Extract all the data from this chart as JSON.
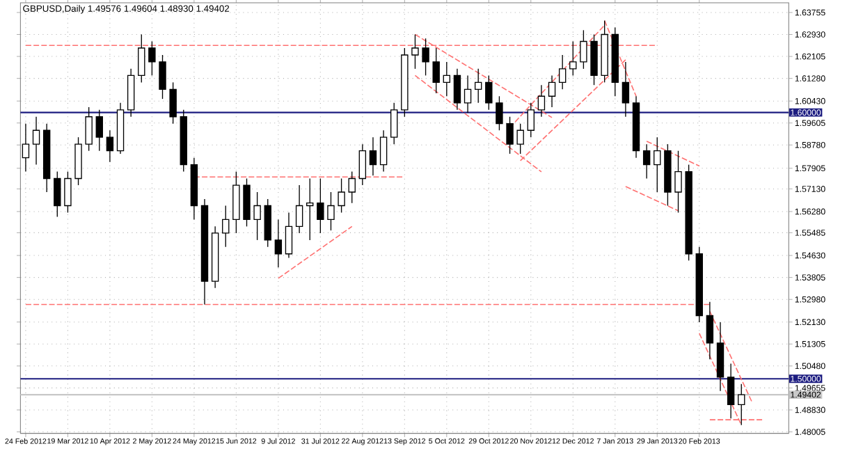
{
  "chart_data": {
    "type": "candlestick",
    "title": "GBPUSD,Daily  1.49576 1.49604 1.48930 1.49402",
    "color": "#000000",
    "grid": true,
    "categories": [
      "24 Feb 2012",
      null,
      null,
      null,
      "19 Mar 2012",
      null,
      null,
      null,
      "10 Apr 2012",
      null,
      null,
      null,
      "2 May 2012",
      null,
      null,
      null,
      "24 May 2012",
      null,
      null,
      null,
      "15 Jun 2012",
      null,
      null,
      null,
      "9 Jul 2012",
      null,
      null,
      null,
      "31 Jul 2012",
      null,
      null,
      null,
      "22 Aug 2012",
      null,
      null,
      null,
      "13 Sep 2012",
      null,
      null,
      null,
      "5 Oct 2012",
      null,
      null,
      null,
      "29 Oct 2012",
      null,
      null,
      null,
      "20 Nov 2012",
      null,
      null,
      null,
      "12 Dec 2012",
      null,
      null,
      null,
      "7 Jan 2013",
      null,
      null,
      null,
      "29 Jan 2013",
      null,
      null,
      null,
      "20 Feb 2013",
      null,
      null,
      null,
      null,
      null,
      null,
      null,
      null
    ],
    "ohlc": [
      [
        1.583,
        1.5958,
        1.5778,
        1.5881
      ],
      [
        1.5881,
        1.5984,
        1.5804,
        1.5933
      ],
      [
        1.5933,
        1.5958,
        1.5701,
        1.5752
      ],
      [
        1.5752,
        1.5778,
        1.5608,
        1.565
      ],
      [
        1.565,
        1.5778,
        1.5624,
        1.5752
      ],
      [
        1.5752,
        1.5907,
        1.5727,
        1.5881
      ],
      [
        1.5881,
        1.602,
        1.5856,
        1.5984
      ],
      [
        1.5984,
        1.601,
        1.5856,
        1.5907
      ],
      [
        1.5907,
        1.5933,
        1.5814,
        1.5856
      ],
      [
        1.5856,
        1.6036,
        1.5845,
        1.601
      ],
      [
        1.601,
        1.6164,
        1.5984,
        1.6139
      ],
      [
        1.6139,
        1.6293,
        1.6113,
        1.6242
      ],
      [
        1.6242,
        1.6267,
        1.6139,
        1.619
      ],
      [
        1.619,
        1.6216,
        1.6051,
        1.6087
      ],
      [
        1.6087,
        1.6113,
        1.5958,
        1.5984
      ],
      [
        1.5984,
        1.601,
        1.5778,
        1.5804
      ],
      [
        1.5804,
        1.583,
        1.5598,
        1.565
      ],
      [
        1.565,
        1.5675,
        1.5279,
        1.5366
      ],
      [
        1.5366,
        1.5572,
        1.5341,
        1.5547
      ],
      [
        1.5547,
        1.565,
        1.5495,
        1.5598
      ],
      [
        1.5598,
        1.5778,
        1.5547,
        1.5727
      ],
      [
        1.5727,
        1.5752,
        1.5572,
        1.5598
      ],
      [
        1.5598,
        1.5701,
        1.5521,
        1.565
      ],
      [
        1.565,
        1.5675,
        1.5495,
        1.5521
      ],
      [
        1.5521,
        1.5598,
        1.5418,
        1.5469
      ],
      [
        1.5469,
        1.5624,
        1.5454,
        1.5572
      ],
      [
        1.5572,
        1.5727,
        1.5547,
        1.565
      ],
      [
        1.565,
        1.5752,
        1.5521,
        1.566
      ],
      [
        1.566,
        1.5752,
        1.5547,
        1.5598
      ],
      [
        1.5598,
        1.5701,
        1.5557,
        1.565
      ],
      [
        1.565,
        1.5752,
        1.5624,
        1.5701
      ],
      [
        1.5701,
        1.5778,
        1.566,
        1.5752
      ],
      [
        1.5752,
        1.5881,
        1.5727,
        1.5856
      ],
      [
        1.5856,
        1.5907,
        1.5763,
        1.5804
      ],
      [
        1.5804,
        1.5933,
        1.5778,
        1.5907
      ],
      [
        1.5907,
        1.6036,
        1.5881,
        1.601
      ],
      [
        1.601,
        1.6242,
        1.5984,
        1.6216
      ],
      [
        1.6216,
        1.6293,
        1.6164,
        1.6242
      ],
      [
        1.6242,
        1.6278,
        1.6139,
        1.619
      ],
      [
        1.619,
        1.6242,
        1.6072,
        1.6113
      ],
      [
        1.6113,
        1.619,
        1.6061,
        1.6139
      ],
      [
        1.6139,
        1.6164,
        1.601,
        1.6036
      ],
      [
        1.6036,
        1.6139,
        1.5999,
        1.6087
      ],
      [
        1.6087,
        1.6164,
        1.6036,
        1.6113
      ],
      [
        1.6113,
        1.6139,
        1.601,
        1.6036
      ],
      [
        1.6036,
        1.6061,
        1.5933,
        1.5958
      ],
      [
        1.5958,
        1.5984,
        1.5845,
        1.5881
      ],
      [
        1.5881,
        1.5958,
        1.5845,
        1.5933
      ],
      [
        1.5933,
        1.6036,
        1.5907,
        1.601
      ],
      [
        1.601,
        1.6103,
        1.5984,
        1.6061
      ],
      [
        1.6061,
        1.6139,
        1.602,
        1.6113
      ],
      [
        1.6113,
        1.6216,
        1.6087,
        1.6164
      ],
      [
        1.6164,
        1.6267,
        1.6139,
        1.619
      ],
      [
        1.619,
        1.6309,
        1.6164,
        1.6267
      ],
      [
        1.6267,
        1.6293,
        1.6103,
        1.6139
      ],
      [
        1.6139,
        1.6345,
        1.6113,
        1.6293
      ],
      [
        1.6293,
        1.6319,
        1.6061,
        1.6113
      ],
      [
        1.6113,
        1.619,
        1.5984,
        1.6036
      ],
      [
        1.6036,
        1.6061,
        1.583,
        1.5856
      ],
      [
        1.5856,
        1.5881,
        1.5752,
        1.5804
      ],
      [
        1.5804,
        1.5907,
        1.5701,
        1.5856
      ],
      [
        1.5856,
        1.5881,
        1.565,
        1.5701
      ],
      [
        1.5701,
        1.5856,
        1.5624,
        1.5778
      ],
      [
        1.5778,
        1.5804,
        1.5444,
        1.5469
      ],
      [
        1.5469,
        1.5495,
        1.5212,
        1.5237
      ],
      [
        1.5237,
        1.5289,
        1.5073,
        1.5134
      ],
      [
        1.5134,
        1.5212,
        1.4954,
        1.5006
      ],
      [
        1.5006,
        1.5057,
        1.4851,
        1.4903
      ],
      [
        1.4903,
        1.498,
        1.4826,
        1.494
      ],
      null,
      null,
      null,
      null
    ],
    "ylim": [
      1.4795,
      1.6412
    ],
    "yticks": [
      {
        "value": 1.63755,
        "label": "1.63755"
      },
      {
        "value": 1.6293,
        "label": "1.62930"
      },
      {
        "value": 1.62105,
        "label": "1.62105"
      },
      {
        "value": 1.6128,
        "label": "1.61280"
      },
      {
        "value": 1.6043,
        "label": "1.60430"
      },
      {
        "value": 1.59605,
        "label": "1.59605"
      },
      {
        "value": 1.5878,
        "label": "1.58780"
      },
      {
        "value": 1.57905,
        "label": "1.57905"
      },
      {
        "value": 1.5713,
        "label": "1.57130"
      },
      {
        "value": 1.5628,
        "label": "1.56280"
      },
      {
        "value": 1.55485,
        "label": "1.55485"
      },
      {
        "value": 1.5463,
        "label": "1.54630"
      },
      {
        "value": 1.53805,
        "label": "1.53805"
      },
      {
        "value": 1.5298,
        "label": "1.52980"
      },
      {
        "value": 1.5213,
        "label": "1.52130"
      },
      {
        "value": 1.51305,
        "label": "1.51305"
      },
      {
        "value": 1.5048,
        "label": "1.50480"
      },
      {
        "value": 1.49655,
        "label": "1.49655"
      },
      {
        "value": 1.4883,
        "label": "1.48830"
      },
      {
        "value": 1.48005,
        "label": "1.48005"
      }
    ],
    "ref_lines": [
      {
        "axis": "y",
        "value": 1.6,
        "label": "1.60000",
        "color": "#1c1c80"
      },
      {
        "axis": "y",
        "value": 1.5,
        "label": "1.50000",
        "color": "#1c1c80"
      },
      {
        "axis": "y",
        "value": 1.49402,
        "label": "1.49402",
        "color": "#c8c8c8"
      }
    ],
    "series": [
      {
        "type": "line",
        "color": "#ff7070",
        "line_style": "dashed",
        "values": [
          1.6252,
          null,
          null,
          null,
          null,
          null,
          null,
          null,
          null,
          null,
          null,
          null,
          null,
          null,
          null,
          null,
          null,
          null,
          null,
          null,
          null,
          null,
          null,
          null,
          null,
          null,
          null,
          null,
          null,
          null,
          null,
          null,
          null,
          null,
          null,
          null,
          null,
          null,
          null,
          null,
          null,
          null,
          null,
          null,
          null,
          null,
          null,
          null,
          null,
          null,
          null,
          null,
          null,
          null,
          null,
          null,
          null,
          null,
          null,
          null,
          1.6252,
          null,
          null,
          null,
          null,
          null,
          null,
          null,
          null,
          null,
          null,
          null,
          null
        ]
      },
      {
        "type": "line",
        "color": "#ff7070",
        "line_style": "dashed",
        "values": [
          null,
          null,
          null,
          null,
          null,
          null,
          null,
          null,
          null,
          null,
          null,
          null,
          null,
          null,
          null,
          null,
          1.5758,
          null,
          null,
          null,
          null,
          null,
          null,
          null,
          null,
          null,
          null,
          null,
          null,
          null,
          null,
          null,
          null,
          null,
          null,
          null,
          1.5758,
          null,
          null,
          null,
          null,
          null,
          null,
          null,
          null,
          null,
          null,
          null,
          null,
          null,
          null,
          null,
          null,
          null,
          null,
          null,
          null,
          null,
          null,
          null,
          null,
          null,
          null,
          null,
          null,
          null,
          null,
          null,
          null,
          null,
          null,
          null,
          null
        ]
      },
      {
        "type": "line",
        "color": "#ff7070",
        "line_style": "dashed",
        "values": [
          1.5279,
          null,
          null,
          null,
          null,
          null,
          null,
          null,
          null,
          null,
          null,
          null,
          null,
          null,
          null,
          null,
          null,
          null,
          null,
          null,
          null,
          null,
          null,
          null,
          null,
          null,
          null,
          null,
          null,
          null,
          null,
          null,
          null,
          null,
          null,
          null,
          null,
          null,
          null,
          null,
          null,
          null,
          null,
          null,
          null,
          null,
          null,
          null,
          null,
          null,
          null,
          null,
          null,
          null,
          null,
          null,
          null,
          null,
          null,
          null,
          null,
          null,
          null,
          null,
          null,
          1.5279,
          null,
          null,
          null,
          null,
          null,
          null,
          null
        ]
      },
      {
        "type": "line",
        "color": "#ff7070",
        "line_style": "dashed",
        "values": [
          null,
          null,
          null,
          null,
          null,
          null,
          null,
          null,
          null,
          null,
          null,
          null,
          null,
          null,
          null,
          null,
          null,
          null,
          null,
          null,
          null,
          null,
          null,
          null,
          null,
          null,
          null,
          null,
          null,
          null,
          null,
          null,
          null,
          null,
          null,
          null,
          null,
          null,
          null,
          null,
          null,
          null,
          null,
          null,
          null,
          null,
          null,
          null,
          null,
          null,
          null,
          null,
          null,
          null,
          null,
          null,
          null,
          null,
          null,
          null,
          null,
          null,
          null,
          null,
          null,
          1.4846,
          null,
          null,
          null,
          null,
          1.4846,
          null,
          null
        ]
      },
      {
        "type": "line",
        "color": "#ff7070",
        "line_style": "dashed",
        "values": [
          null,
          null,
          null,
          null,
          null,
          null,
          null,
          null,
          null,
          null,
          null,
          null,
          null,
          null,
          null,
          null,
          null,
          null,
          null,
          null,
          null,
          null,
          null,
          null,
          1.5377,
          null,
          null,
          null,
          null,
          null,
          null,
          1.5572,
          null,
          null,
          null,
          null,
          null,
          null,
          null,
          null,
          null,
          null,
          null,
          null,
          null,
          null,
          null,
          null,
          null,
          null,
          null,
          null,
          null,
          null,
          null,
          null,
          null,
          null,
          null,
          null,
          null,
          null,
          null,
          null,
          null,
          null,
          null,
          null,
          null,
          null,
          null,
          null,
          null
        ]
      },
      {
        "type": "line",
        "color": "#ff7070",
        "line_style": "dashed",
        "values": [
          null,
          null,
          null,
          null,
          null,
          null,
          null,
          null,
          null,
          null,
          null,
          null,
          null,
          null,
          null,
          null,
          null,
          null,
          null,
          null,
          null,
          null,
          null,
          null,
          null,
          null,
          null,
          null,
          null,
          null,
          null,
          null,
          null,
          null,
          null,
          null,
          null,
          1.6293,
          null,
          null,
          null,
          null,
          null,
          null,
          null,
          null,
          null,
          null,
          null,
          null,
          1.5981,
          null,
          null,
          null,
          null,
          null,
          null,
          null,
          null,
          null,
          null,
          null,
          null,
          null,
          null,
          null,
          null,
          null,
          null,
          null,
          null,
          null,
          null
        ]
      },
      {
        "type": "line",
        "color": "#ff7070",
        "line_style": "dashed",
        "values": [
          null,
          null,
          null,
          null,
          null,
          null,
          null,
          null,
          null,
          null,
          null,
          null,
          null,
          null,
          null,
          null,
          null,
          null,
          null,
          null,
          null,
          null,
          null,
          null,
          null,
          null,
          null,
          null,
          null,
          null,
          null,
          null,
          null,
          null,
          null,
          null,
          null,
          1.6139,
          null,
          null,
          null,
          null,
          null,
          null,
          null,
          null,
          null,
          null,
          null,
          1.5777,
          null,
          null,
          null,
          null,
          null,
          null,
          null,
          null,
          null,
          null,
          null,
          null,
          null,
          null,
          null,
          null,
          null,
          null,
          null,
          null,
          null,
          null,
          null
        ]
      },
      {
        "type": "line",
        "color": "#ff7070",
        "line_style": "dashed",
        "values": [
          null,
          null,
          null,
          null,
          null,
          null,
          null,
          null,
          null,
          null,
          null,
          null,
          null,
          null,
          null,
          null,
          null,
          null,
          null,
          null,
          null,
          null,
          null,
          null,
          null,
          null,
          null,
          null,
          null,
          null,
          null,
          null,
          null,
          null,
          null,
          null,
          null,
          null,
          null,
          null,
          null,
          null,
          null,
          null,
          null,
          null,
          null,
          1.5819,
          null,
          null,
          null,
          null,
          null,
          null,
          null,
          null,
          null,
          1.6198,
          null,
          null,
          null,
          null,
          null,
          null,
          null,
          null,
          null,
          null,
          null,
          null,
          null,
          null,
          null
        ]
      },
      {
        "type": "line",
        "color": "#ff7070",
        "line_style": "dashed",
        "values": [
          null,
          null,
          null,
          null,
          null,
          null,
          null,
          null,
          null,
          null,
          null,
          null,
          null,
          null,
          null,
          null,
          null,
          null,
          null,
          null,
          null,
          null,
          null,
          null,
          null,
          null,
          null,
          null,
          null,
          null,
          null,
          null,
          null,
          null,
          null,
          null,
          null,
          null,
          null,
          null,
          null,
          null,
          null,
          null,
          null,
          null,
          1.5943,
          null,
          null,
          null,
          null,
          null,
          null,
          null,
          null,
          1.6328,
          null,
          null,
          null,
          null,
          null,
          null,
          null,
          null,
          null,
          null,
          null,
          null,
          null,
          null,
          null,
          null,
          null
        ]
      },
      {
        "type": "line",
        "color": "#ff7070",
        "line_style": "dashed",
        "values": [
          null,
          null,
          null,
          null,
          null,
          null,
          null,
          null,
          null,
          null,
          null,
          null,
          null,
          null,
          null,
          null,
          null,
          null,
          null,
          null,
          null,
          null,
          null,
          null,
          null,
          null,
          null,
          null,
          null,
          null,
          null,
          null,
          null,
          null,
          null,
          null,
          null,
          null,
          null,
          null,
          null,
          null,
          null,
          null,
          null,
          null,
          null,
          null,
          null,
          null,
          null,
          null,
          null,
          null,
          null,
          1.6345,
          null,
          null,
          1.6061,
          null,
          null,
          null,
          null,
          null,
          null,
          null,
          null,
          null,
          null,
          null,
          null,
          null,
          null
        ]
      },
      {
        "type": "line",
        "color": "#ff7070",
        "line_style": "dashed",
        "values": [
          null,
          null,
          null,
          null,
          null,
          null,
          null,
          null,
          null,
          null,
          null,
          null,
          null,
          null,
          null,
          null,
          null,
          null,
          null,
          null,
          null,
          null,
          null,
          null,
          null,
          null,
          null,
          null,
          null,
          null,
          null,
          null,
          null,
          null,
          null,
          null,
          null,
          null,
          null,
          null,
          null,
          null,
          null,
          null,
          null,
          null,
          null,
          null,
          null,
          null,
          null,
          null,
          null,
          null,
          null,
          null,
          null,
          null,
          null,
          1.5892,
          null,
          null,
          null,
          null,
          1.5799,
          null,
          null,
          null,
          null,
          null,
          null,
          null,
          null
        ]
      },
      {
        "type": "line",
        "color": "#ff7070",
        "line_style": "dashed",
        "values": [
          null,
          null,
          null,
          null,
          null,
          null,
          null,
          null,
          null,
          null,
          null,
          null,
          null,
          null,
          null,
          null,
          null,
          null,
          null,
          null,
          null,
          null,
          null,
          null,
          null,
          null,
          null,
          null,
          null,
          null,
          null,
          null,
          null,
          null,
          null,
          null,
          null,
          null,
          null,
          null,
          null,
          null,
          null,
          null,
          null,
          null,
          null,
          null,
          null,
          null,
          null,
          null,
          null,
          null,
          null,
          null,
          null,
          1.5722,
          null,
          null,
          null,
          null,
          1.5631,
          null,
          null,
          null,
          null,
          null,
          null,
          null,
          null,
          null,
          null
        ]
      },
      {
        "type": "line",
        "color": "#ff7070",
        "line_style": "dashed",
        "values": [
          null,
          null,
          null,
          null,
          null,
          null,
          null,
          null,
          null,
          null,
          null,
          null,
          null,
          null,
          null,
          null,
          null,
          null,
          null,
          null,
          null,
          null,
          null,
          null,
          null,
          null,
          null,
          null,
          null,
          null,
          null,
          null,
          null,
          null,
          null,
          null,
          null,
          null,
          null,
          null,
          null,
          null,
          null,
          null,
          null,
          null,
          null,
          null,
          null,
          null,
          null,
          null,
          null,
          null,
          null,
          null,
          null,
          null,
          null,
          null,
          null,
          null,
          null,
          null,
          null,
          1.5253,
          null,
          null,
          null,
          1.4913,
          null,
          null,
          null
        ]
      },
      {
        "type": "line",
        "color": "#ff7070",
        "line_style": "dashed",
        "values": [
          null,
          null,
          null,
          null,
          null,
          null,
          null,
          null,
          null,
          null,
          null,
          null,
          null,
          null,
          null,
          null,
          null,
          null,
          null,
          null,
          null,
          null,
          null,
          null,
          null,
          null,
          null,
          null,
          null,
          null,
          null,
          null,
          null,
          null,
          null,
          null,
          null,
          null,
          null,
          null,
          null,
          null,
          null,
          null,
          null,
          null,
          null,
          null,
          null,
          null,
          null,
          null,
          null,
          null,
          null,
          null,
          null,
          null,
          null,
          null,
          null,
          null,
          null,
          null,
          1.5171,
          null,
          null,
          null,
          1.4826,
          null,
          null,
          null,
          null
        ]
      }
    ]
  }
}
